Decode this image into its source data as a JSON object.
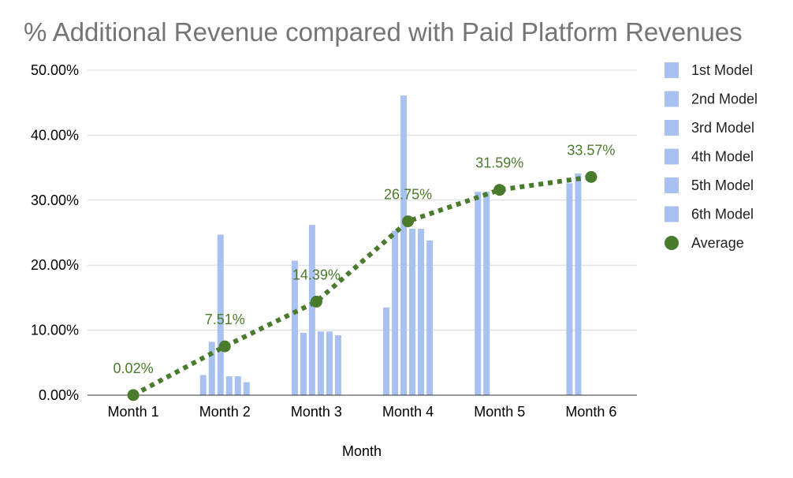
{
  "chart_data": {
    "type": "bar",
    "title": "% Additional Revenue compared with Paid Platform Revenues",
    "xlabel": "Month",
    "ylabel": "",
    "ylim": [
      0,
      50
    ],
    "ytick_values": [
      0,
      10,
      20,
      30,
      40,
      50
    ],
    "ytick_labels": [
      "0.00%",
      "10.00%",
      "20.00%",
      "30.00%",
      "40.00%",
      "50.00%"
    ],
    "categories": [
      "Month 1",
      "Month 2",
      "Month 3",
      "Month 4",
      "Month 5",
      "Month 6"
    ],
    "grid": true,
    "legend_position": "right",
    "series": [
      {
        "name": "1st Model",
        "type": "bar",
        "color": "#a9c1f0",
        "values": [
          null,
          3.1,
          20.7,
          13.5,
          31.3,
          32.6
        ]
      },
      {
        "name": "2nd Model",
        "type": "bar",
        "color": "#a9c1f0",
        "values": [
          null,
          8.2,
          9.6,
          25.3,
          31.3,
          34.1
        ]
      },
      {
        "name": "3rd Model",
        "type": "bar",
        "color": "#a9c1f0",
        "values": [
          null,
          24.7,
          26.2,
          46.1,
          null,
          null
        ]
      },
      {
        "name": "4th Model",
        "type": "bar",
        "color": "#a9c1f0",
        "values": [
          null,
          2.9,
          9.8,
          25.6,
          null,
          null
        ]
      },
      {
        "name": "5th Model",
        "type": "bar",
        "color": "#a9c1f0",
        "values": [
          null,
          2.9,
          9.8,
          25.6,
          null,
          null
        ]
      },
      {
        "name": "6th Model",
        "type": "bar",
        "color": "#a9c1f0",
        "values": [
          null,
          2.0,
          9.2,
          23.8,
          null,
          null
        ]
      },
      {
        "name": "Average",
        "type": "line",
        "style": "dotted",
        "color": "#4a7a2c",
        "values": [
          0.02,
          7.51,
          14.39,
          26.75,
          31.59,
          33.57
        ],
        "data_labels": [
          "0.02%",
          "7.51%",
          "14.39%",
          "26.75%",
          "31.59%",
          "33.57%"
        ]
      }
    ]
  }
}
